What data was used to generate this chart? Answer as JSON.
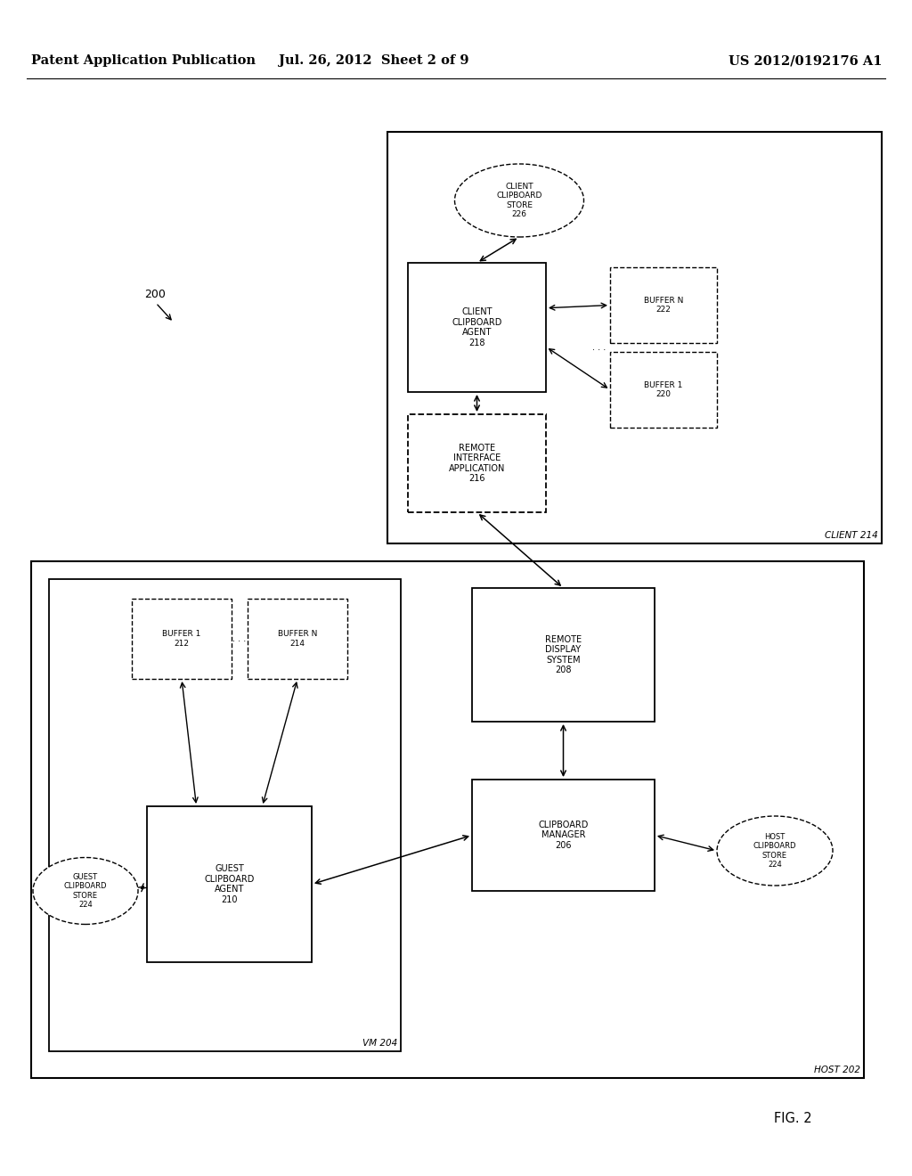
{
  "header_left": "Patent Application Publication",
  "header_mid": "Jul. 26, 2012  Sheet 2 of 9",
  "header_right": "US 2012/0192176 A1",
  "fig_label": "FIG. 2",
  "bg_color": "#ffffff"
}
